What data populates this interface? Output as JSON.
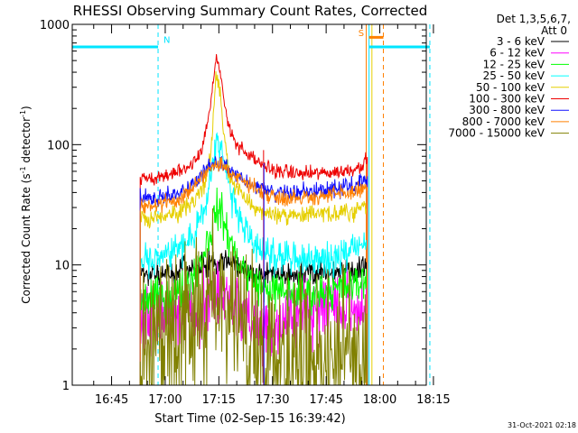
{
  "chart_data": {
    "type": "line",
    "title": "RHESSI Observing Summary Count Rates, Corrected",
    "xlabel": "Start Time (02-Sep-15 16:39:42)",
    "ylabel_main": "Corrected Count Rate (s",
    "ylabel_sup1": "-1",
    "ylabel_mid": " detector",
    "ylabel_sup2": "-1",
    "ylabel_end": ")",
    "y_scale": "log",
    "ylim": [
      1,
      1000
    ],
    "y_ticks": [
      {
        "value": 1,
        "label": "1"
      },
      {
        "value": 10,
        "label": "10"
      },
      {
        "value": 100,
        "label": "100"
      },
      {
        "value": 1000,
        "label": "1000"
      }
    ],
    "x_range_min": [
      -6,
      93
    ],
    "x_ticks": [
      {
        "t": 5,
        "label": "16:45"
      },
      {
        "t": 20,
        "label": "17:00"
      },
      {
        "t": 35,
        "label": "17:15"
      },
      {
        "t": 50,
        "label": "17:30"
      },
      {
        "t": 65,
        "label": "17:45"
      },
      {
        "t": 80,
        "label": "18:00"
      },
      {
        "t": 95,
        "label": "18:15"
      }
    ],
    "legend_header": [
      "Det 1,3,5,6,7,",
      "Att 0"
    ],
    "legend_placement": "right",
    "timestamp": "31-Oct-2021 02:18",
    "data_window": {
      "t_start": 13,
      "t_end": 76.5
    },
    "series": [
      {
        "name": "3 - 6 keV",
        "color": "#000000",
        "noise": 0.05,
        "points": [
          [
            13,
            8.5
          ],
          [
            20,
            8.5
          ],
          [
            28,
            9.2
          ],
          [
            32,
            10
          ],
          [
            34,
            10.5
          ],
          [
            36,
            10.8
          ],
          [
            38,
            10.5
          ],
          [
            41,
            9.5
          ],
          [
            44,
            8.6
          ],
          [
            50,
            8.2
          ],
          [
            58,
            8.2
          ],
          [
            66,
            8.6
          ],
          [
            72,
            9.2
          ],
          [
            76.5,
            9.5
          ]
        ]
      },
      {
        "name": "6 - 12 keV",
        "color": "#ff00ff",
        "noise": 0.15,
        "points": [
          [
            13,
            3.4
          ],
          [
            20,
            3.4
          ],
          [
            26,
            3.6
          ],
          [
            30,
            4.6
          ],
          [
            33,
            5.5
          ],
          [
            35,
            6.0
          ],
          [
            37,
            5.6
          ],
          [
            40,
            4.5
          ],
          [
            43,
            3.6
          ],
          [
            47,
            3.1
          ],
          [
            52,
            3.3
          ],
          [
            60,
            4.2
          ],
          [
            70,
            4.5
          ],
          [
            76.5,
            4.5
          ]
        ]
      },
      {
        "name": "12 - 25 keV",
        "color": "#00ff00",
        "noise": 0.08,
        "points": [
          [
            13,
            5.2
          ],
          [
            20,
            5.4
          ],
          [
            26,
            6.5
          ],
          [
            30,
            11
          ],
          [
            33,
            20
          ],
          [
            34.5,
            30
          ],
          [
            36,
            25
          ],
          [
            38,
            16
          ],
          [
            41,
            10
          ],
          [
            44,
            7.5
          ],
          [
            48,
            6.2
          ],
          [
            55,
            5.8
          ],
          [
            65,
            6.0
          ],
          [
            72,
            6.6
          ],
          [
            76.5,
            7.5
          ]
        ]
      },
      {
        "name": "25 - 50 keV",
        "color": "#00ffff",
        "noise": 0.07,
        "points": [
          [
            13,
            10.5
          ],
          [
            18,
            11
          ],
          [
            24,
            13
          ],
          [
            28,
            18
          ],
          [
            31,
            30
          ],
          [
            33,
            55
          ],
          [
            34.5,
            110
          ],
          [
            36,
            80
          ],
          [
            38,
            45
          ],
          [
            40,
            27
          ],
          [
            43,
            18
          ],
          [
            47,
            13.5
          ],
          [
            52,
            11.5
          ],
          [
            60,
            11
          ],
          [
            68,
            11.5
          ],
          [
            73,
            13
          ],
          [
            76.5,
            15
          ]
        ]
      },
      {
        "name": "50 - 100 keV",
        "color": "#e6cf00",
        "noise": 0.04,
        "points": [
          [
            13,
            25
          ],
          [
            18,
            25
          ],
          [
            24,
            27
          ],
          [
            28,
            33
          ],
          [
            31,
            45
          ],
          [
            33,
            100
          ],
          [
            34.2,
            370
          ],
          [
            35.2,
            300
          ],
          [
            36.5,
            110
          ],
          [
            38,
            55
          ],
          [
            41,
            40
          ],
          [
            44,
            32
          ],
          [
            48,
            27
          ],
          [
            55,
            26
          ],
          [
            65,
            26
          ],
          [
            72,
            28
          ],
          [
            76.5,
            32
          ]
        ]
      },
      {
        "name": "100 - 300 keV",
        "color": "#ee0000",
        "noise": 0.03,
        "points": [
          [
            13,
            53
          ],
          [
            17,
            53
          ],
          [
            22,
            57
          ],
          [
            27,
            67
          ],
          [
            30,
            90
          ],
          [
            32,
            160
          ],
          [
            33.5,
            330
          ],
          [
            34.3,
            500
          ],
          [
            35.2,
            430
          ],
          [
            36.5,
            220
          ],
          [
            38,
            140
          ],
          [
            40,
            100
          ],
          [
            43,
            82
          ],
          [
            46,
            70
          ],
          [
            50,
            62
          ],
          [
            53,
            60
          ],
          [
            58,
            57
          ],
          [
            64,
            58
          ],
          [
            70,
            60
          ],
          [
            74,
            65
          ],
          [
            76.5,
            75
          ]
        ]
      },
      {
        "name": "300 - 800 keV",
        "color": "#1010ff",
        "noise": 0.035,
        "points": [
          [
            13,
            36
          ],
          [
            18,
            36
          ],
          [
            24,
            40
          ],
          [
            28,
            48
          ],
          [
            31,
            60
          ],
          [
            34,
            70
          ],
          [
            36.5,
            68
          ],
          [
            39,
            60
          ],
          [
            42,
            52
          ],
          [
            46,
            44
          ],
          [
            50,
            40
          ],
          [
            56,
            40
          ],
          [
            62,
            42
          ],
          [
            68,
            43
          ],
          [
            72,
            45
          ],
          [
            76.5,
            52
          ]
        ]
      },
      {
        "name": "800 - 7000 keV",
        "color": "#ff8000",
        "noise": 0.035,
        "points": [
          [
            13,
            31
          ],
          [
            18,
            31
          ],
          [
            24,
            36
          ],
          [
            28,
            45
          ],
          [
            31,
            57
          ],
          [
            34,
            67
          ],
          [
            36.5,
            65
          ],
          [
            39,
            58
          ],
          [
            42,
            49
          ],
          [
            46,
            42
          ],
          [
            50,
            37
          ],
          [
            56,
            36
          ],
          [
            62,
            37
          ],
          [
            68,
            38
          ],
          [
            72,
            40
          ],
          [
            76.5,
            44
          ]
        ]
      },
      {
        "name": "7000 - 15000 keV",
        "color": "#808000",
        "noise": 0.35,
        "points": [
          [
            13,
            1.7
          ],
          [
            18,
            1.7
          ],
          [
            22,
            2.0
          ],
          [
            26,
            2.6
          ],
          [
            30,
            3.6
          ],
          [
            33,
            5.2
          ],
          [
            35,
            5.8
          ],
          [
            37,
            5.0
          ],
          [
            40,
            3.6
          ],
          [
            43,
            2.6
          ],
          [
            47,
            1.9
          ],
          [
            52,
            1.8
          ],
          [
            60,
            1.8
          ],
          [
            68,
            1.8
          ],
          [
            76.5,
            1.8
          ]
        ]
      }
    ],
    "spikes": [
      {
        "t": 47.5,
        "value": 90,
        "color": "#ee0000"
      },
      {
        "t": 47.6,
        "value": 70,
        "color": "#1010ff"
      }
    ],
    "vertical_markers": [
      {
        "t": -6,
        "color": "#00e5ff",
        "style": "solid"
      },
      {
        "t": 18,
        "color": "#00e5ff",
        "style": "dashed"
      },
      {
        "t": 77,
        "color": "#00e5ff",
        "style": "solid"
      },
      {
        "t": 94,
        "color": "#00e5ff",
        "style": "dashed"
      },
      {
        "t": 76.2,
        "color": "#ff8000",
        "style": "solid"
      },
      {
        "t": 77.8,
        "color": "#e6cf00",
        "style": "solid"
      },
      {
        "t": 81,
        "color": "#ff8000",
        "style": "dashed"
      }
    ],
    "flag_bars": [
      {
        "t0": -6,
        "t1": 18,
        "value": 650,
        "color": "#00e5ff",
        "label": "N",
        "label_t": 19.5,
        "label_value": 700
      },
      {
        "t0": 77,
        "t1": 94,
        "value": 650,
        "color": "#00e5ff",
        "label": "",
        "label_t": 0,
        "label_value": 0
      },
      {
        "t0": 77,
        "t1": 81,
        "value": 780,
        "color": "#ff8000",
        "label": "S",
        "label_t": 74,
        "label_value": 800
      }
    ]
  }
}
